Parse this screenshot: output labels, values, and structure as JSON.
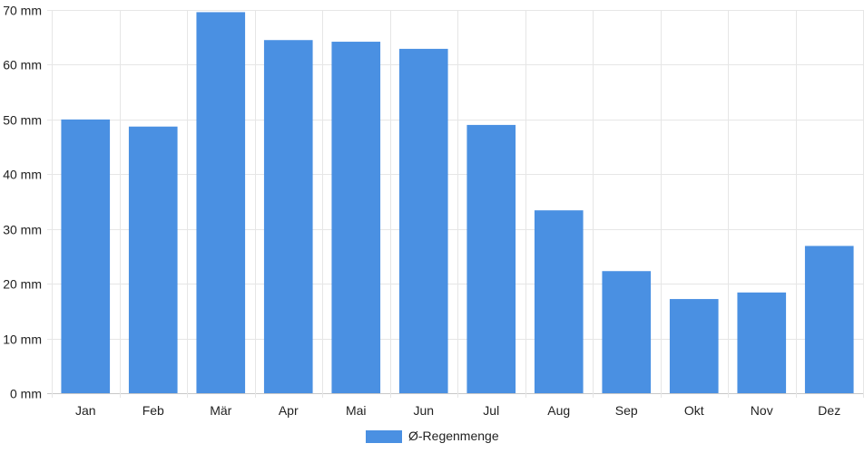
{
  "chart_data": {
    "type": "bar",
    "categories": [
      "Jan",
      "Feb",
      "Mär",
      "Apr",
      "Mai",
      "Jun",
      "Jul",
      "Aug",
      "Sep",
      "Okt",
      "Nov",
      "Dez"
    ],
    "series": [
      {
        "name": "Ø-Regenmenge",
        "values": [
          50.0,
          48.7,
          69.6,
          64.5,
          64.2,
          62.9,
          49.0,
          33.4,
          22.3,
          17.2,
          18.4,
          26.9
        ],
        "color": "#4a90e2"
      }
    ],
    "y_ticks": [
      "0 mm",
      "10 mm",
      "20 mm",
      "30 mm",
      "40 mm",
      "50 mm",
      "60 mm",
      "70 mm"
    ],
    "ylim": [
      0,
      70
    ],
    "ystep": 10,
    "title": "",
    "xlabel": "",
    "ylabel": "",
    "grid": true,
    "legend_position": "bottom"
  }
}
